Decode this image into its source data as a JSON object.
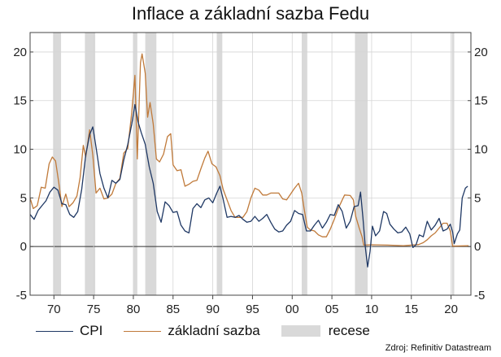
{
  "chart_data": {
    "type": "line",
    "title": "Inflace a základní sazba Fedu",
    "xlabel": "",
    "ylabel": "",
    "xlim": [
      1967,
      2022.5
    ],
    "ylim": [
      -5,
      22
    ],
    "y_ticks": [
      -5,
      0,
      5,
      10,
      15,
      20
    ],
    "y_tick_labels": [
      "-5",
      "0",
      "5",
      "10",
      "15",
      "20"
    ],
    "x_ticks": [
      1970,
      1975,
      1980,
      1985,
      1990,
      1995,
      2000,
      2005,
      2010,
      2015,
      2020
    ],
    "x_tick_labels": [
      "70",
      "75",
      "80",
      "85",
      "90",
      "95",
      "00",
      "05",
      "10",
      "15",
      "20"
    ],
    "grid": true,
    "legend_position": "bottom",
    "recessions": [
      [
        1969.9,
        1970.9
      ],
      [
        1973.9,
        1975.2
      ],
      [
        1980.0,
        1980.5
      ],
      [
        1981.5,
        1982.9
      ],
      [
        1990.5,
        1991.2
      ],
      [
        2001.2,
        2001.9
      ],
      [
        2007.9,
        2009.5
      ],
      [
        2020.1,
        2020.4
      ]
    ],
    "series": [
      {
        "name": "CPI",
        "color": "#1f3864",
        "points": [
          [
            1967.0,
            3.3
          ],
          [
            1967.5,
            2.8
          ],
          [
            1968.0,
            3.7
          ],
          [
            1968.5,
            4.2
          ],
          [
            1969.0,
            4.7
          ],
          [
            1969.5,
            5.6
          ],
          [
            1970.0,
            6.1
          ],
          [
            1970.5,
            5.8
          ],
          [
            1971.0,
            4.4
          ],
          [
            1971.5,
            4.3
          ],
          [
            1972.0,
            3.3
          ],
          [
            1972.5,
            3.0
          ],
          [
            1973.0,
            3.6
          ],
          [
            1973.5,
            5.9
          ],
          [
            1974.0,
            9.4
          ],
          [
            1974.5,
            11.5
          ],
          [
            1974.9,
            12.3
          ],
          [
            1975.3,
            10.2
          ],
          [
            1975.8,
            7.5
          ],
          [
            1976.3,
            6.0
          ],
          [
            1976.8,
            5.0
          ],
          [
            1977.3,
            6.8
          ],
          [
            1977.8,
            6.5
          ],
          [
            1978.3,
            6.9
          ],
          [
            1978.8,
            8.9
          ],
          [
            1979.3,
            10.5
          ],
          [
            1979.8,
            12.6
          ],
          [
            1980.2,
            14.6
          ],
          [
            1980.6,
            12.8
          ],
          [
            1981.0,
            11.7
          ],
          [
            1981.5,
            10.5
          ],
          [
            1982.0,
            8.2
          ],
          [
            1982.5,
            6.5
          ],
          [
            1983.0,
            3.6
          ],
          [
            1983.5,
            2.5
          ],
          [
            1984.0,
            4.6
          ],
          [
            1984.5,
            4.2
          ],
          [
            1985.0,
            3.5
          ],
          [
            1985.5,
            3.6
          ],
          [
            1986.0,
            2.2
          ],
          [
            1986.5,
            1.6
          ],
          [
            1987.0,
            1.4
          ],
          [
            1987.5,
            3.9
          ],
          [
            1988.0,
            4.4
          ],
          [
            1988.5,
            4.0
          ],
          [
            1989.0,
            4.8
          ],
          [
            1989.5,
            5.0
          ],
          [
            1990.0,
            4.5
          ],
          [
            1990.5,
            5.5
          ],
          [
            1990.9,
            6.2
          ],
          [
            1991.3,
            4.9
          ],
          [
            1991.8,
            3.0
          ],
          [
            1992.3,
            3.1
          ],
          [
            1992.8,
            3.0
          ],
          [
            1993.3,
            3.2
          ],
          [
            1993.8,
            2.8
          ],
          [
            1994.3,
            2.5
          ],
          [
            1994.8,
            2.6
          ],
          [
            1995.3,
            3.1
          ],
          [
            1995.8,
            2.6
          ],
          [
            1996.3,
            2.9
          ],
          [
            1996.8,
            3.3
          ],
          [
            1997.3,
            2.5
          ],
          [
            1997.8,
            1.8
          ],
          [
            1998.3,
            1.5
          ],
          [
            1998.8,
            1.6
          ],
          [
            1999.3,
            2.2
          ],
          [
            1999.8,
            2.6
          ],
          [
            2000.3,
            3.7
          ],
          [
            2000.8,
            3.4
          ],
          [
            2001.3,
            3.3
          ],
          [
            2001.8,
            1.6
          ],
          [
            2002.3,
            1.6
          ],
          [
            2002.8,
            2.2
          ],
          [
            2003.3,
            2.7
          ],
          [
            2003.8,
            1.9
          ],
          [
            2004.3,
            2.5
          ],
          [
            2004.8,
            3.3
          ],
          [
            2005.3,
            3.2
          ],
          [
            2005.8,
            4.3
          ],
          [
            2006.3,
            3.6
          ],
          [
            2006.8,
            1.9
          ],
          [
            2007.3,
            2.6
          ],
          [
            2007.8,
            4.1
          ],
          [
            2008.3,
            4.2
          ],
          [
            2008.6,
            5.6
          ],
          [
            2008.9,
            3.0
          ],
          [
            2009.2,
            0.0
          ],
          [
            2009.5,
            -2.1
          ],
          [
            2009.8,
            -0.5
          ],
          [
            2010.1,
            2.1
          ],
          [
            2010.5,
            1.1
          ],
          [
            2011.0,
            1.6
          ],
          [
            2011.5,
            3.6
          ],
          [
            2011.9,
            3.4
          ],
          [
            2012.3,
            2.3
          ],
          [
            2012.8,
            1.8
          ],
          [
            2013.3,
            1.4
          ],
          [
            2013.8,
            1.5
          ],
          [
            2014.3,
            2.0
          ],
          [
            2014.8,
            1.3
          ],
          [
            2015.2,
            -0.1
          ],
          [
            2015.6,
            0.2
          ],
          [
            2016.0,
            1.2
          ],
          [
            2016.5,
            1.0
          ],
          [
            2017.0,
            2.6
          ],
          [
            2017.5,
            1.7
          ],
          [
            2018.0,
            2.2
          ],
          [
            2018.5,
            2.9
          ],
          [
            2019.0,
            1.6
          ],
          [
            2019.5,
            1.8
          ],
          [
            2019.9,
            2.3
          ],
          [
            2020.2,
            1.5
          ],
          [
            2020.4,
            0.3
          ],
          [
            2020.8,
            1.3
          ],
          [
            2021.1,
            1.7
          ],
          [
            2021.4,
            5.0
          ],
          [
            2021.8,
            6.0
          ],
          [
            2022.1,
            6.2
          ]
        ]
      },
      {
        "name": "základní sazba",
        "color": "#c07a3a",
        "points": [
          [
            1967.0,
            5.0
          ],
          [
            1967.4,
            3.9
          ],
          [
            1967.9,
            4.2
          ],
          [
            1968.4,
            6.1
          ],
          [
            1968.9,
            6.0
          ],
          [
            1969.4,
            8.5
          ],
          [
            1969.8,
            9.2
          ],
          [
            1970.2,
            8.8
          ],
          [
            1970.6,
            6.6
          ],
          [
            1971.0,
            4.1
          ],
          [
            1971.5,
            5.4
          ],
          [
            1971.9,
            4.1
          ],
          [
            1972.4,
            4.5
          ],
          [
            1972.9,
            5.2
          ],
          [
            1973.3,
            7.1
          ],
          [
            1973.7,
            10.4
          ],
          [
            1974.0,
            9.2
          ],
          [
            1974.5,
            12.0
          ],
          [
            1974.9,
            9.4
          ],
          [
            1975.3,
            5.5
          ],
          [
            1975.8,
            6.0
          ],
          [
            1976.3,
            4.9
          ],
          [
            1976.8,
            5.0
          ],
          [
            1977.3,
            5.4
          ],
          [
            1977.8,
            6.5
          ],
          [
            1978.3,
            7.0
          ],
          [
            1978.8,
            9.6
          ],
          [
            1979.3,
            10.1
          ],
          [
            1979.8,
            13.8
          ],
          [
            1980.2,
            17.6
          ],
          [
            1980.5,
            9.0
          ],
          [
            1980.9,
            18.9
          ],
          [
            1981.1,
            19.8
          ],
          [
            1981.5,
            17.8
          ],
          [
            1981.8,
            13.3
          ],
          [
            1982.1,
            14.8
          ],
          [
            1982.5,
            12.6
          ],
          [
            1982.9,
            9.0
          ],
          [
            1983.3,
            8.7
          ],
          [
            1983.8,
            9.5
          ],
          [
            1984.3,
            11.3
          ],
          [
            1984.7,
            11.6
          ],
          [
            1985.0,
            8.4
          ],
          [
            1985.5,
            7.8
          ],
          [
            1986.0,
            7.9
          ],
          [
            1986.5,
            6.2
          ],
          [
            1987.0,
            6.4
          ],
          [
            1987.5,
            6.7
          ],
          [
            1988.0,
            6.8
          ],
          [
            1988.5,
            8.0
          ],
          [
            1989.0,
            9.1
          ],
          [
            1989.4,
            9.8
          ],
          [
            1989.9,
            8.5
          ],
          [
            1990.4,
            8.2
          ],
          [
            1990.9,
            7.3
          ],
          [
            1991.3,
            5.9
          ],
          [
            1991.8,
            4.8
          ],
          [
            1992.3,
            3.7
          ],
          [
            1992.8,
            3.0
          ],
          [
            1993.3,
            3.0
          ],
          [
            1993.8,
            3.0
          ],
          [
            1994.3,
            3.6
          ],
          [
            1994.8,
            5.0
          ],
          [
            1995.3,
            6.0
          ],
          [
            1995.8,
            5.8
          ],
          [
            1996.3,
            5.3
          ],
          [
            1996.8,
            5.3
          ],
          [
            1997.3,
            5.5
          ],
          [
            1997.8,
            5.5
          ],
          [
            1998.3,
            5.5
          ],
          [
            1998.8,
            4.9
          ],
          [
            1999.3,
            4.8
          ],
          [
            1999.8,
            5.4
          ],
          [
            2000.3,
            6.0
          ],
          [
            2000.8,
            6.5
          ],
          [
            2001.2,
            5.5
          ],
          [
            2001.5,
            3.9
          ],
          [
            2001.9,
            2.0
          ],
          [
            2002.3,
            1.7
          ],
          [
            2002.8,
            1.6
          ],
          [
            2003.3,
            1.2
          ],
          [
            2003.8,
            1.0
          ],
          [
            2004.3,
            1.0
          ],
          [
            2004.8,
            1.8
          ],
          [
            2005.3,
            2.8
          ],
          [
            2005.8,
            3.9
          ],
          [
            2006.3,
            4.8
          ],
          [
            2006.6,
            5.3
          ],
          [
            2007.3,
            5.25
          ],
          [
            2007.7,
            4.8
          ],
          [
            2008.0,
            3.1
          ],
          [
            2008.4,
            2.0
          ],
          [
            2008.8,
            1.0
          ],
          [
            2009.0,
            0.15
          ],
          [
            2010.0,
            0.18
          ],
          [
            2012.0,
            0.15
          ],
          [
            2014.0,
            0.09
          ],
          [
            2015.9,
            0.2
          ],
          [
            2016.5,
            0.4
          ],
          [
            2017.0,
            0.7
          ],
          [
            2017.5,
            1.1
          ],
          [
            2018.0,
            1.4
          ],
          [
            2018.5,
            1.9
          ],
          [
            2019.0,
            2.4
          ],
          [
            2019.5,
            2.4
          ],
          [
            2019.9,
            1.6
          ],
          [
            2020.2,
            0.05
          ],
          [
            2022.2,
            0.08
          ]
        ]
      }
    ],
    "recession_label": "recese",
    "recession_color": "#d9d9d9",
    "source": "Zdroj: Refinitiv Datastream"
  }
}
